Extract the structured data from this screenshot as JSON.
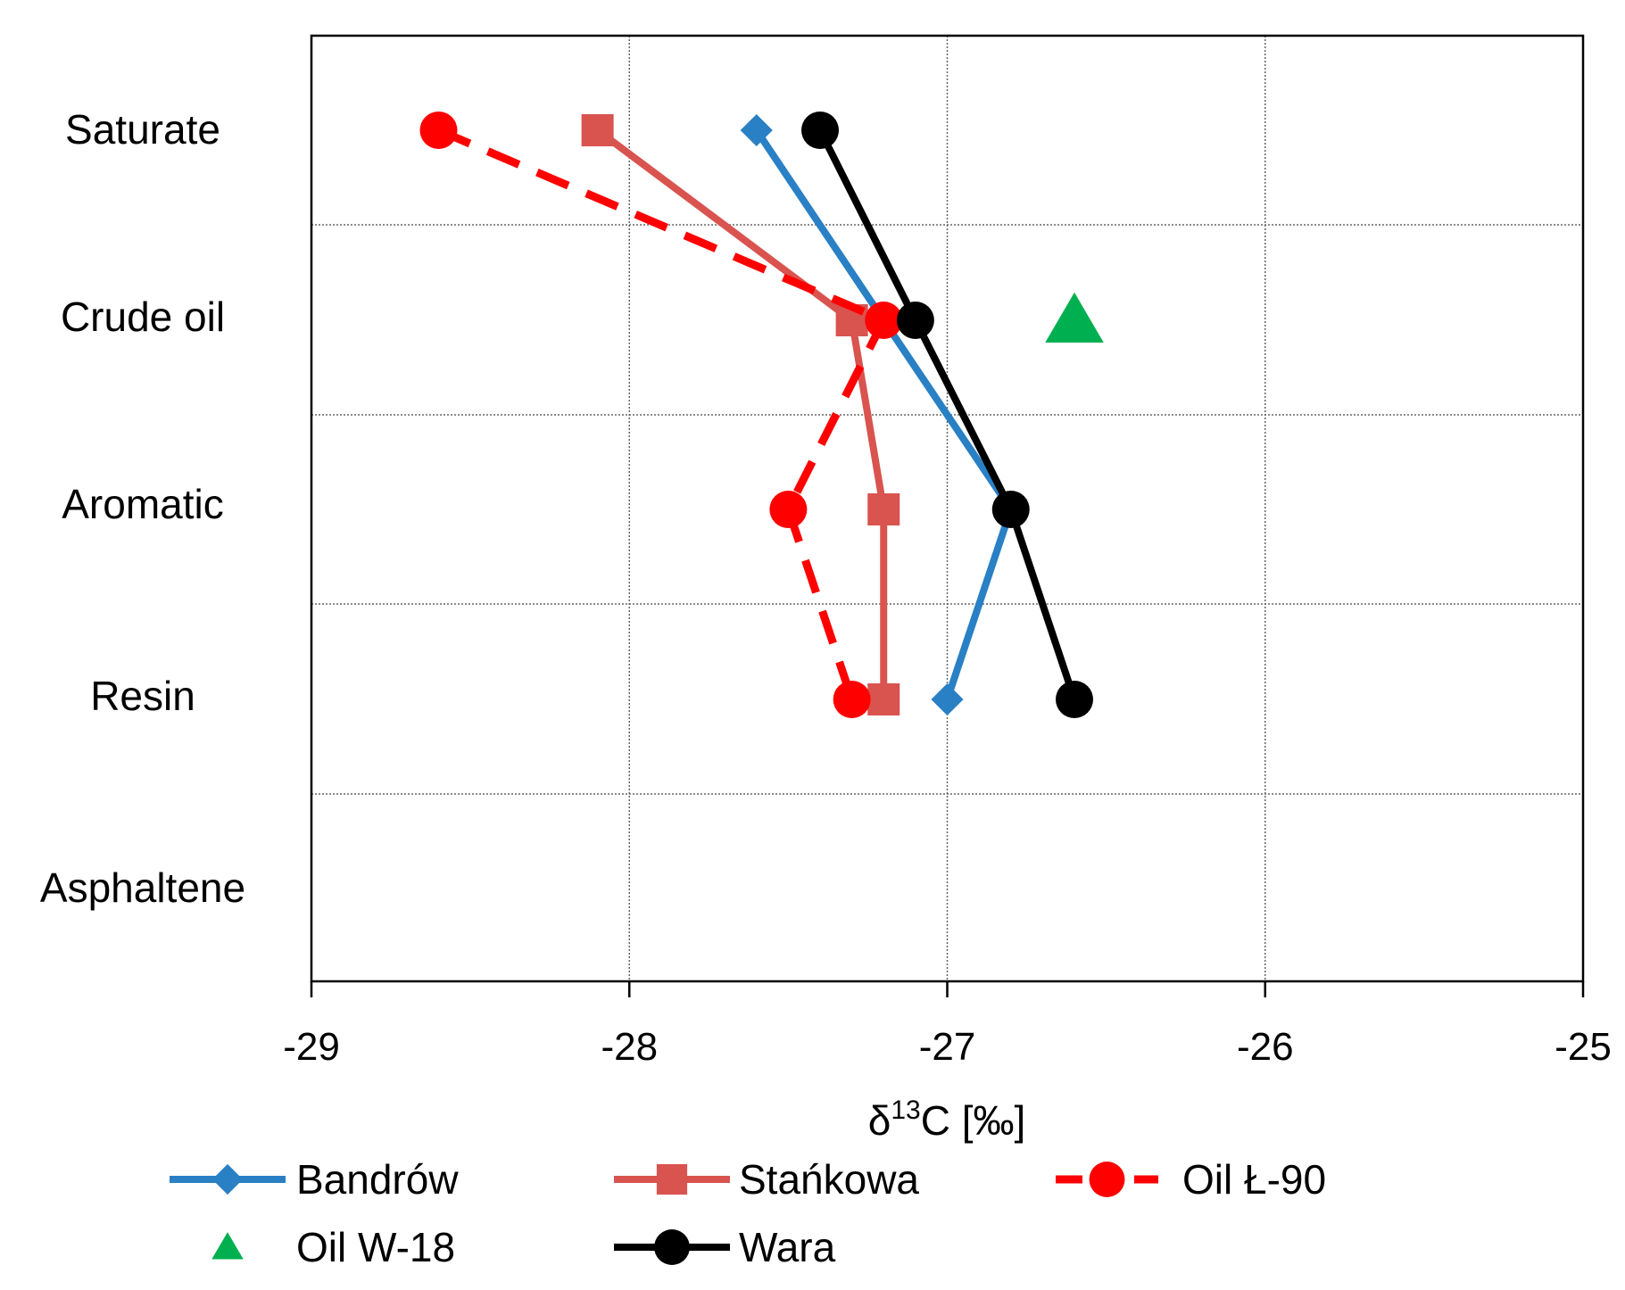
{
  "chart_data": {
    "type": "line",
    "orientation": "horizontal-values",
    "xlabel": "δ¹³C [‰]",
    "xlabel_parts": {
      "base": "δ",
      "sup": "13",
      "rest": "C [‰]"
    },
    "xlim": [
      -29,
      -25
    ],
    "xticks": [
      -29,
      -28,
      -27,
      -26,
      -25
    ],
    "xtick_labels": [
      "-29",
      "-28",
      "-27",
      "-26",
      "-25"
    ],
    "categories": [
      "Saturate",
      "Crude oil",
      "Aromatic",
      "Resin",
      "Asphaltene"
    ],
    "grid": true,
    "legend_position": "bottom",
    "series": [
      {
        "name": "Bandrów",
        "color": "#2980c4",
        "marker": "diamond",
        "dash": false,
        "values": [
          -27.6,
          -27.2,
          -26.8,
          -27.0,
          null
        ]
      },
      {
        "name": "Stańkowa",
        "color": "#d9534f",
        "marker": "square",
        "dash": false,
        "values": [
          -28.1,
          -27.3,
          -27.2,
          -27.2,
          null
        ]
      },
      {
        "name": "Oil Ł-90",
        "color": "#ff0000",
        "marker": "circle",
        "dash": true,
        "values": [
          -28.6,
          -27.2,
          -27.5,
          -27.3,
          null
        ]
      },
      {
        "name": "Oil W-18",
        "color": "#00b050",
        "marker": "triangle",
        "dash": false,
        "markers_only": true,
        "values": [
          null,
          -26.6,
          null,
          null,
          null
        ]
      },
      {
        "name": "Wara",
        "color": "#000000",
        "marker": "circle",
        "dash": false,
        "values": [
          -27.4,
          -27.1,
          -26.8,
          -26.6,
          null
        ]
      }
    ]
  }
}
